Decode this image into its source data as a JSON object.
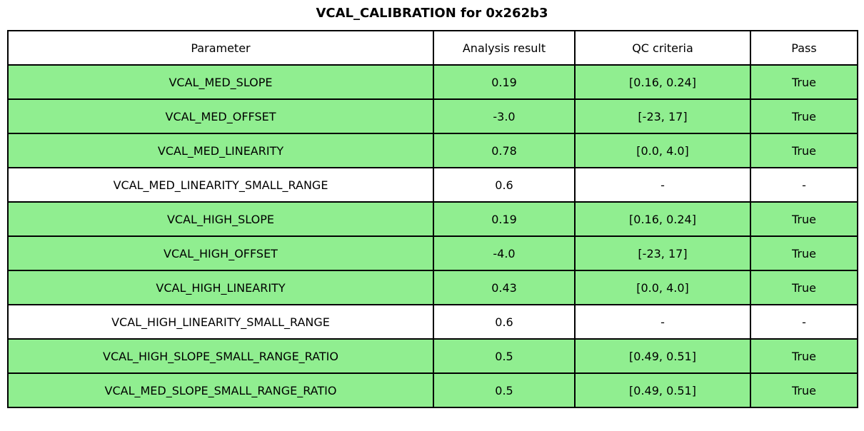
{
  "title": "VCAL_CALIBRATION for 0x262b3",
  "colors": {
    "pass_green": "#90ee90",
    "row_white": "#ffffff",
    "border_black": "#000000"
  },
  "table": {
    "headers": [
      "Parameter",
      "Analysis result",
      "QC criteria",
      "Pass"
    ],
    "rows": [
      {
        "parameter": "VCAL_MED_SLOPE",
        "result": "0.19",
        "criteria": "[0.16, 0.24]",
        "pass": "True",
        "highlighted": true
      },
      {
        "parameter": "VCAL_MED_OFFSET",
        "result": "-3.0",
        "criteria": "[-23, 17]",
        "pass": "True",
        "highlighted": true
      },
      {
        "parameter": "VCAL_MED_LINEARITY",
        "result": "0.78",
        "criteria": "[0.0, 4.0]",
        "pass": "True",
        "highlighted": true
      },
      {
        "parameter": "VCAL_MED_LINEARITY_SMALL_RANGE",
        "result": "0.6",
        "criteria": "-",
        "pass": "-",
        "highlighted": false
      },
      {
        "parameter": "VCAL_HIGH_SLOPE",
        "result": "0.19",
        "criteria": "[0.16, 0.24]",
        "pass": "True",
        "highlighted": true
      },
      {
        "parameter": "VCAL_HIGH_OFFSET",
        "result": "-4.0",
        "criteria": "[-23, 17]",
        "pass": "True",
        "highlighted": true
      },
      {
        "parameter": "VCAL_HIGH_LINEARITY",
        "result": "0.43",
        "criteria": "[0.0, 4.0]",
        "pass": "True",
        "highlighted": true
      },
      {
        "parameter": "VCAL_HIGH_LINEARITY_SMALL_RANGE",
        "result": "0.6",
        "criteria": "-",
        "pass": "-",
        "highlighted": false
      },
      {
        "parameter": "VCAL_HIGH_SLOPE_SMALL_RANGE_RATIO",
        "result": "0.5",
        "criteria": "[0.49, 0.51]",
        "pass": "True",
        "highlighted": true
      },
      {
        "parameter": "VCAL_MED_SLOPE_SMALL_RANGE_RATIO",
        "result": "0.5",
        "criteria": "[0.49, 0.51]",
        "pass": "True",
        "highlighted": true
      }
    ]
  },
  "chart_data": {
    "type": "table",
    "title": "VCAL_CALIBRATION for 0x262b3",
    "columns": [
      "Parameter",
      "Analysis result",
      "QC criteria",
      "Pass"
    ],
    "rows": [
      [
        "VCAL_MED_SLOPE",
        "0.19",
        "[0.16, 0.24]",
        "True"
      ],
      [
        "VCAL_MED_OFFSET",
        "-3.0",
        "[-23, 17]",
        "True"
      ],
      [
        "VCAL_MED_LINEARITY",
        "0.78",
        "[0.0, 4.0]",
        "True"
      ],
      [
        "VCAL_MED_LINEARITY_SMALL_RANGE",
        "0.6",
        "-",
        "-"
      ],
      [
        "VCAL_HIGH_SLOPE",
        "0.19",
        "[0.16, 0.24]",
        "True"
      ],
      [
        "VCAL_HIGH_OFFSET",
        "-4.0",
        "[-23, 17]",
        "True"
      ],
      [
        "VCAL_HIGH_LINEARITY",
        "0.43",
        "[0.0, 4.0]",
        "True"
      ],
      [
        "VCAL_HIGH_LINEARITY_SMALL_RANGE",
        "0.6",
        "-",
        "-"
      ],
      [
        "VCAL_HIGH_SLOPE_SMALL_RANGE_RATIO",
        "0.5",
        "[0.49, 0.51]",
        "True"
      ],
      [
        "VCAL_MED_SLOPE_SMALL_RANGE_RATIO",
        "0.5",
        "[0.49, 0.51]",
        "True"
      ]
    ],
    "layout_hints": {
      "row_highlight_color": "#90ee90",
      "unhighlighted_rows": [
        3,
        7
      ],
      "border": "2px solid black",
      "title_position": "top-center"
    }
  }
}
